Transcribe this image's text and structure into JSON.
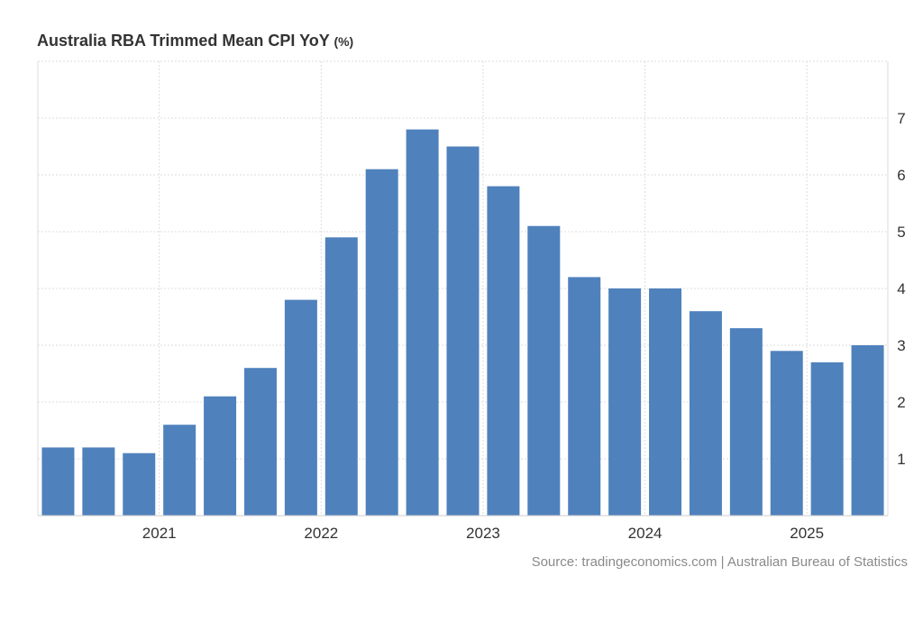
{
  "chart_data": {
    "type": "bar",
    "title": "Australia RBA Trimmed Mean CPI YoY",
    "unit": "(%)",
    "source": "Source: tradingeconomics.com | Australian Bureau of Statistics",
    "values": [
      1.2,
      1.2,
      1.1,
      1.6,
      2.1,
      2.6,
      3.8,
      4.9,
      6.1,
      6.8,
      6.5,
      5.8,
      5.1,
      4.2,
      4.0,
      4.0,
      3.6,
      3.3,
      2.9,
      2.7,
      3.0
    ],
    "x_tick_labels": [
      "2021",
      "2022",
      "2023",
      "2024",
      "2025"
    ],
    "x_tick_bar_index": [
      2.5,
      6.5,
      10.5,
      14.5,
      18.5
    ],
    "y_ticks": [
      1,
      2,
      3,
      4,
      5,
      6,
      7
    ],
    "ylim": [
      0,
      8
    ],
    "y_axis_side": "right",
    "grid": true,
    "bar_color": "#4f81bd"
  }
}
